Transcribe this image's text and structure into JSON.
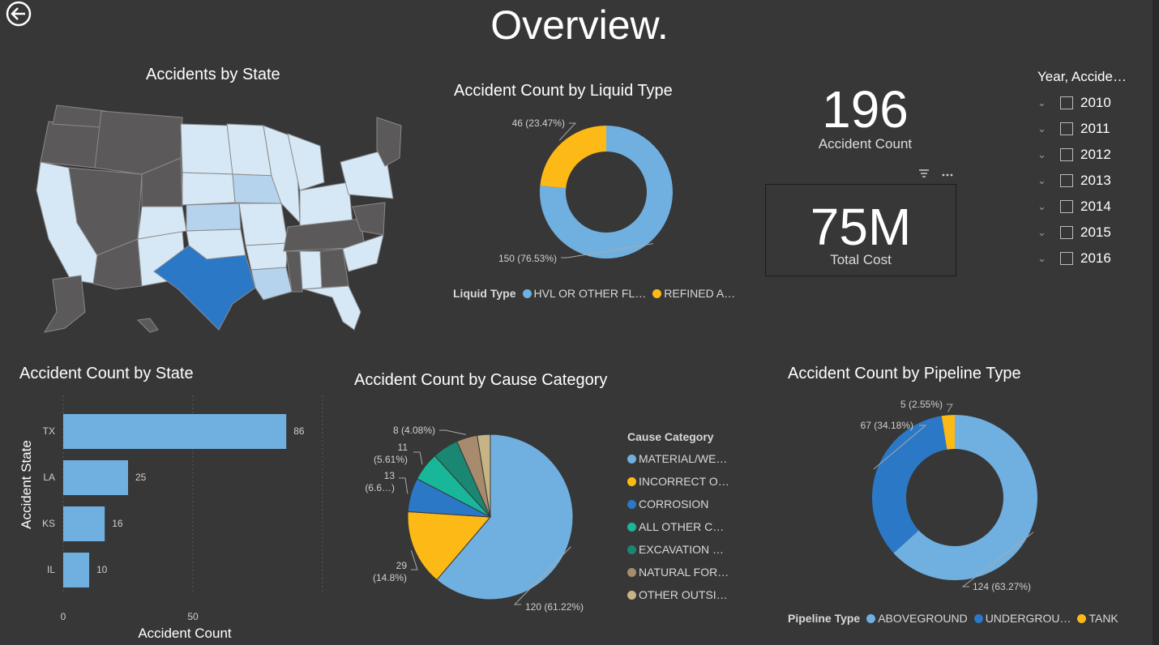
{
  "page": {
    "title": "Overview."
  },
  "map": {
    "title": "Accidents by State"
  },
  "kpi": {
    "count_value": "196",
    "count_label": "Accident Count",
    "cost_value": "75M",
    "cost_label": "Total Cost"
  },
  "slicer": {
    "title": "Year, Accide…",
    "years": [
      "2010",
      "2011",
      "2012",
      "2013",
      "2014",
      "2015",
      "2016"
    ]
  },
  "colors": {
    "light_blue": "#70b0e0",
    "dark_blue": "#2a78c6",
    "yellow": "#fdb915",
    "teal": "#18b79a",
    "dark_teal": "#1a8772",
    "brown": "#a88b6c",
    "tan": "#c7b486",
    "map_dark": "#5b5959",
    "map_light": "#d6e8f6"
  },
  "chart_data": [
    {
      "id": "liquid",
      "type": "donut",
      "title": "Accident Count by Liquid Type",
      "legend_title": "Liquid Type",
      "categories": [
        "HVL OR OTHER FL…",
        "REFINED A…"
      ],
      "values": [
        150,
        46
      ],
      "labels": [
        "150 (76.53%)",
        "46 (23.47%)"
      ],
      "colors": [
        "#70b0e0",
        "#fdb915"
      ]
    },
    {
      "id": "state",
      "type": "bar",
      "orientation": "horizontal",
      "title": "Accident Count by State",
      "xlabel": "Accident Count",
      "ylabel": "Accident State",
      "categories": [
        "TX",
        "LA",
        "KS",
        "IL"
      ],
      "values": [
        86,
        25,
        16,
        10
      ],
      "xlim": [
        0,
        100
      ],
      "xticks": [
        "0",
        "50"
      ]
    },
    {
      "id": "cause",
      "type": "pie",
      "title": "Accident Count by Cause Category",
      "legend_title": "Cause Category",
      "categories": [
        "MATERIAL/WE…",
        "INCORRECT O…",
        "CORROSION",
        "ALL OTHER C…",
        "EXCAVATION …",
        "NATURAL FOR…",
        "OTHER OUTSI…"
      ],
      "values": [
        120,
        29,
        13,
        11,
        10,
        8,
        5
      ],
      "labels": [
        "120 (61.22%)",
        "29|(14.8%)",
        "13|(6.6…)",
        "11|(5.61%)",
        "",
        "8 (4.08%)",
        ""
      ],
      "colors": [
        "#70b0e0",
        "#fdb915",
        "#2a78c6",
        "#18b79a",
        "#1a8772",
        "#a88b6c",
        "#c7b486"
      ]
    },
    {
      "id": "pipeline",
      "type": "donut",
      "title": "Accident Count by Pipeline Type",
      "legend_title": "Pipeline Type",
      "categories": [
        "ABOVEGROUND",
        "UNDERGROU…",
        "TANK"
      ],
      "values": [
        124,
        67,
        5
      ],
      "labels": [
        "124 (63.27%)",
        "67 (34.18%)",
        "5 (2.55%)"
      ],
      "colors": [
        "#70b0e0",
        "#2a78c6",
        "#fdb915"
      ]
    }
  ]
}
